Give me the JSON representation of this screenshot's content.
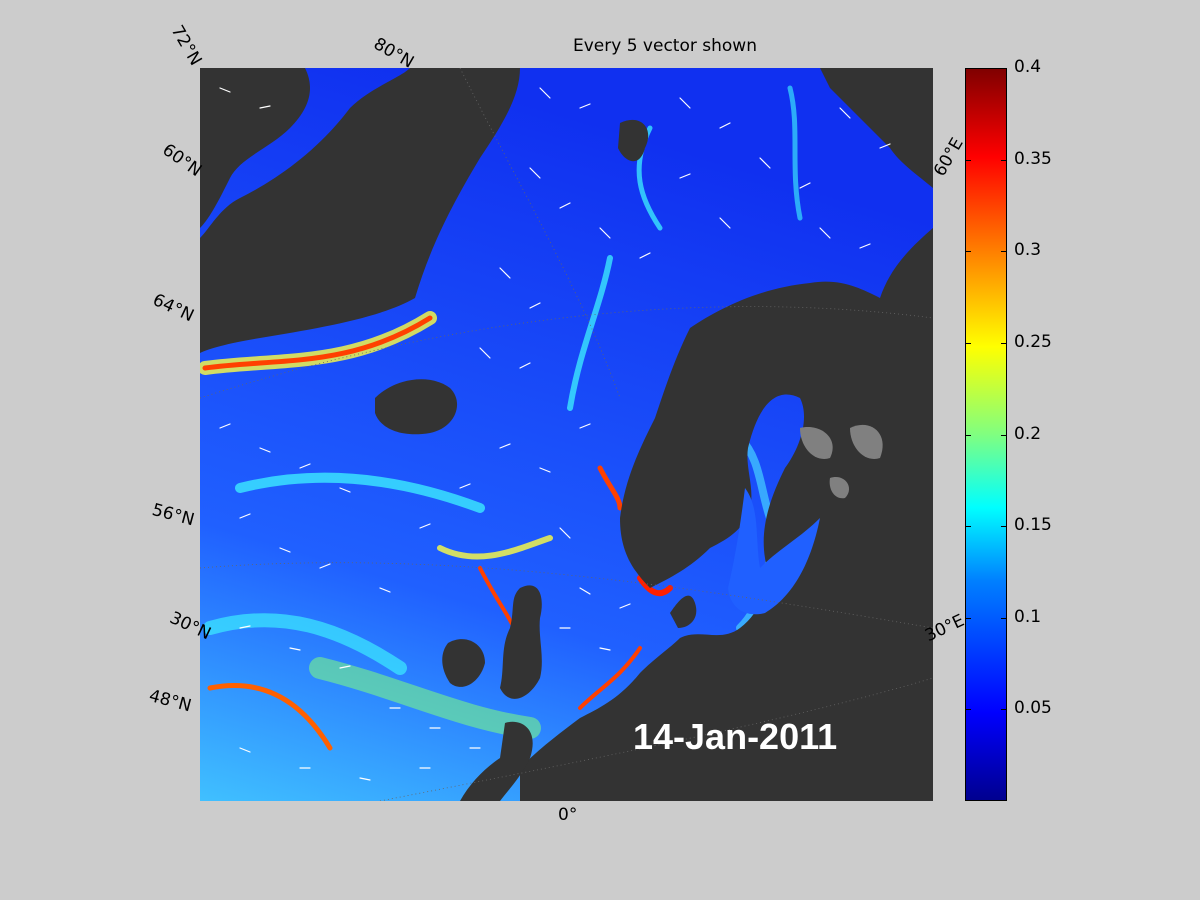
{
  "title": "Every 5 vector shown",
  "date": "14-Jan-2011",
  "lat_labels": [
    "72°N",
    "80°N",
    "60°N",
    "64°N",
    "56°N",
    "30°N",
    "48°N"
  ],
  "lon_labels": [
    "60°E",
    "30°E",
    "0°"
  ],
  "colorbar": {
    "min": 0,
    "max": 0.4,
    "ticks": [
      "0.4",
      "0.35",
      "0.3",
      "0.25",
      "0.2",
      "0.15",
      "0.1",
      "0.05"
    ],
    "colormap": "jet",
    "colors": [
      "#00008f",
      "#0000ff",
      "#0080ff",
      "#00ffff",
      "#80ff80",
      "#ffff00",
      "#ff8000",
      "#ff0000",
      "#800000"
    ]
  },
  "background_color": "#cccccc",
  "land_color": "#333333",
  "sea_ice_color": "#808080",
  "vector_color": "#ffffff"
}
